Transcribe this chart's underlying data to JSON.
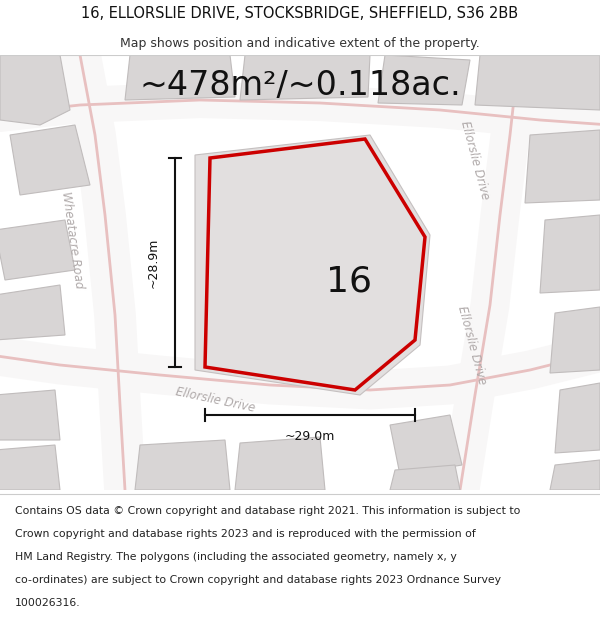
{
  "title_line1": "16, ELLORSLIE DRIVE, STOCKSBRIDGE, SHEFFIELD, S36 2BB",
  "title_line2": "Map shows position and indicative extent of the property.",
  "area_text": "~478m²/~0.118ac.",
  "label_16": "16",
  "dim_height": "~28.9m",
  "dim_width": "~29.0m",
  "footer_lines": [
    "Contains OS data © Crown copyright and database right 2021. This information is subject to",
    "Crown copyright and database rights 2023 and is reproduced with the permission of",
    "HM Land Registry. The polygons (including the associated geometry, namely x, y",
    "co-ordinates) are subject to Crown copyright and database rights 2023 Ordnance Survey",
    "100026316."
  ],
  "map_bg": "#eeeded",
  "building_color": "#d8d5d5",
  "building_edge": "#c0bcbc",
  "road_fill": "#f8f7f7",
  "road_stroke": "#e8c0c0",
  "plot_outline_color": "#cc0000",
  "dim_line_color": "#111111",
  "street_label_color": "#b0aaaa",
  "title_fontsize": 10.5,
  "subtitle_fontsize": 9,
  "area_fontsize": 24,
  "label16_fontsize": 26,
  "footer_fontsize": 7.8,
  "dim_fontsize": 9
}
